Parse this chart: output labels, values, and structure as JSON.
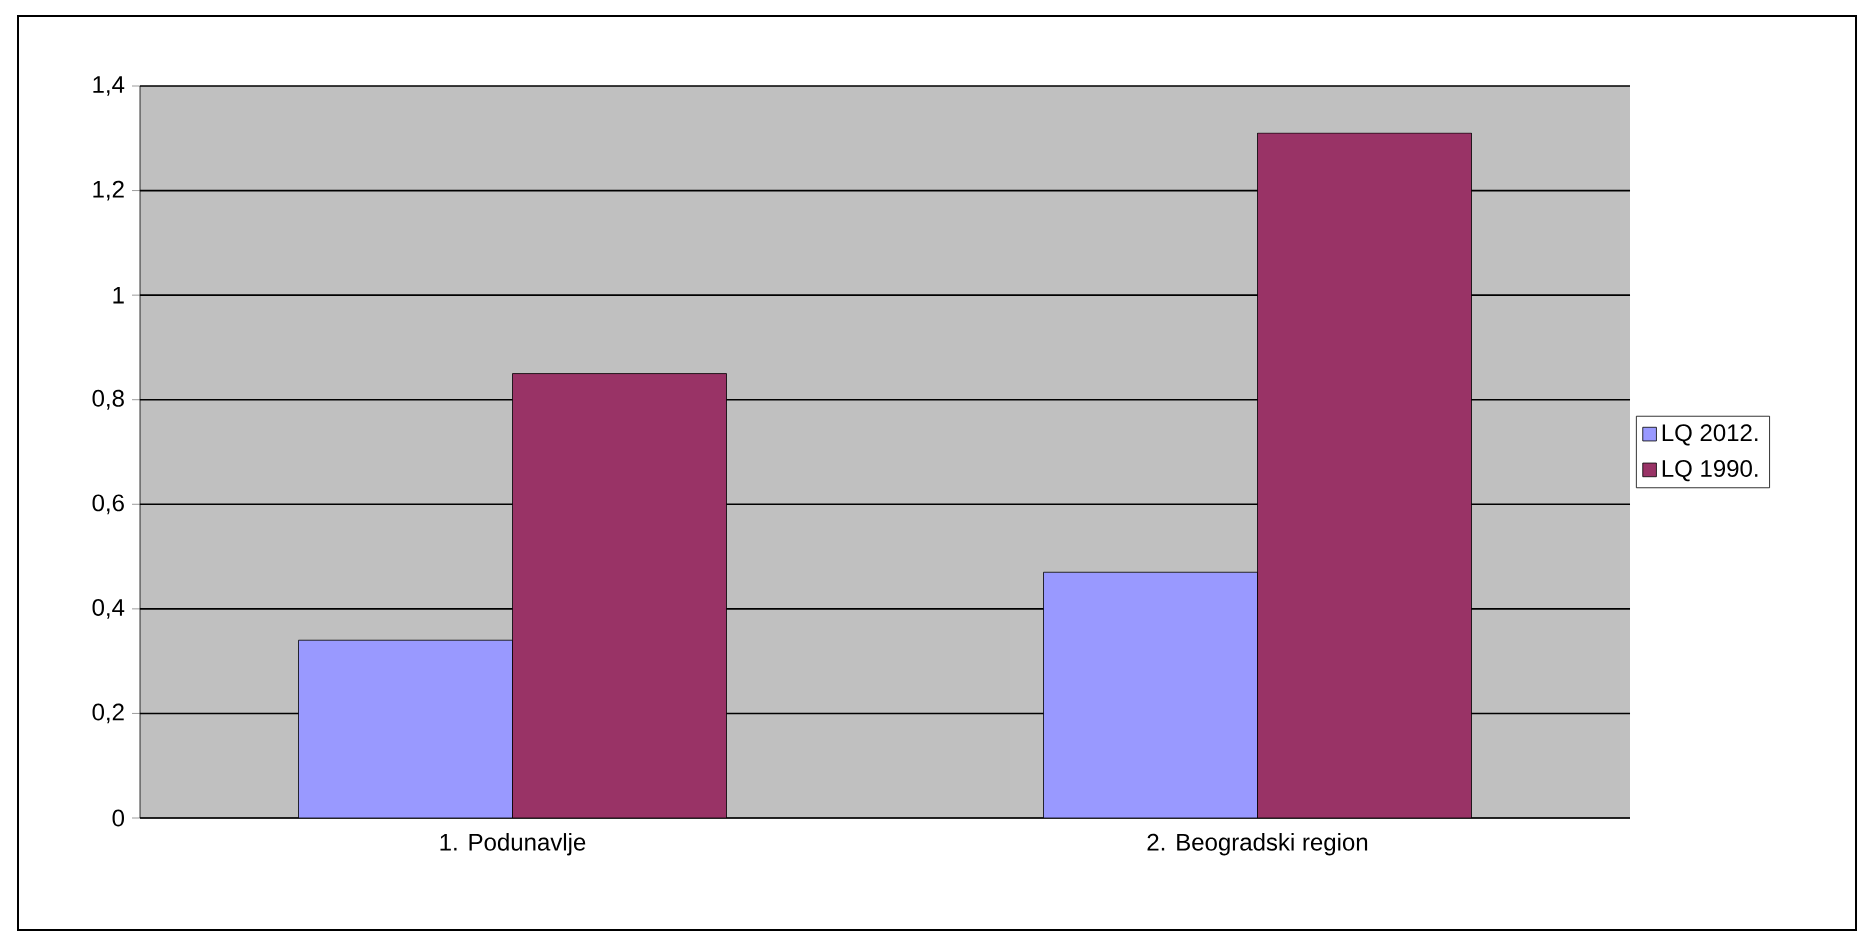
{
  "chart_data": {
    "type": "bar",
    "categories": [
      "1. Podunavlje",
      "2. Beogradski region"
    ],
    "series": [
      {
        "name": "LQ 2012.",
        "color": "#9999ff",
        "values": [
          0.34,
          0.47
        ]
      },
      {
        "name": "LQ 1990.",
        "color": "#993366",
        "values": [
          0.85,
          1.31
        ]
      }
    ],
    "ylim": [
      0,
      1.4
    ],
    "yticks": [
      0,
      {
        "value": 0.2,
        "label": "0,2"
      },
      {
        "value": 0.4,
        "label": "0,4"
      },
      {
        "value": 0.6,
        "label": "0,6"
      },
      {
        "value": 0.8,
        "label": "0,8"
      },
      1,
      {
        "value": 1.2,
        "label": "1,2"
      },
      {
        "value": 1.4,
        "label": "1,4"
      }
    ],
    "grid": "y",
    "legend": "right"
  }
}
